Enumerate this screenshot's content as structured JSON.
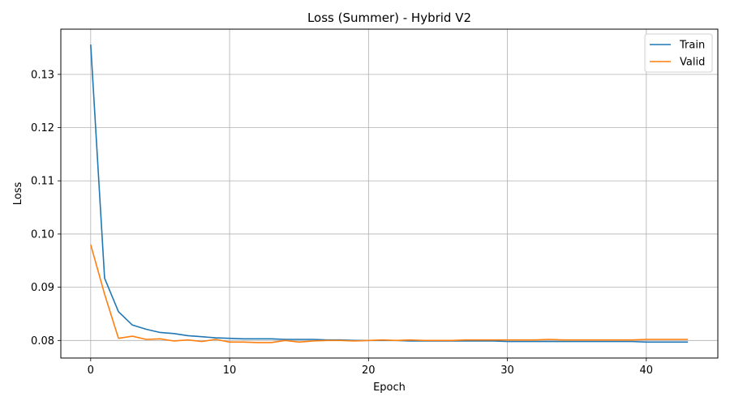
{
  "chart_data": {
    "type": "line",
    "title": "Loss (Summer) - Hybrid V2",
    "xlabel": "Epoch",
    "ylabel": "Loss",
    "xlim": [
      -2.15,
      45.15
    ],
    "ylim": [
      0.0767,
      0.1385
    ],
    "xticks": [
      0,
      10,
      20,
      30,
      40
    ],
    "yticks": [
      0.08,
      0.09,
      0.1,
      0.11,
      0.12,
      0.13
    ],
    "ytick_labels": [
      "0.08",
      "0.09",
      "0.10",
      "0.11",
      "0.12",
      "0.13"
    ],
    "grid": true,
    "legend_position": "top-right",
    "x": [
      0,
      1,
      2,
      3,
      4,
      5,
      6,
      7,
      8,
      9,
      10,
      11,
      12,
      13,
      14,
      15,
      16,
      17,
      18,
      19,
      20,
      21,
      22,
      23,
      24,
      25,
      26,
      27,
      28,
      29,
      30,
      31,
      32,
      33,
      34,
      35,
      36,
      37,
      38,
      39,
      40,
      41,
      42,
      43
    ],
    "series": [
      {
        "name": "Train",
        "color": "#1f77b4",
        "values": [
          0.1356,
          0.0917,
          0.0854,
          0.0829,
          0.0821,
          0.0815,
          0.0813,
          0.0809,
          0.0807,
          0.0805,
          0.0804,
          0.0803,
          0.0803,
          0.0803,
          0.0802,
          0.0802,
          0.0802,
          0.0801,
          0.0801,
          0.08,
          0.08,
          0.08,
          0.08,
          0.0799,
          0.0799,
          0.0799,
          0.0799,
          0.0799,
          0.0799,
          0.0799,
          0.0798,
          0.0798,
          0.0798,
          0.0798,
          0.0798,
          0.0798,
          0.0798,
          0.0798,
          0.0798,
          0.0798,
          0.0797,
          0.0797,
          0.0797,
          0.0797
        ]
      },
      {
        "name": "Valid",
        "color": "#ff7f0e",
        "values": [
          0.098,
          0.0887,
          0.0804,
          0.0808,
          0.0802,
          0.0803,
          0.0799,
          0.0801,
          0.0798,
          0.0802,
          0.0797,
          0.0797,
          0.0796,
          0.0796,
          0.08,
          0.0797,
          0.0799,
          0.08,
          0.08,
          0.0799,
          0.08,
          0.0801,
          0.08,
          0.0801,
          0.08,
          0.08,
          0.08,
          0.0801,
          0.0801,
          0.0801,
          0.0801,
          0.0801,
          0.0801,
          0.0802,
          0.0801,
          0.0801,
          0.0801,
          0.0801,
          0.0801,
          0.0801,
          0.0802,
          0.0802,
          0.0802,
          0.0802
        ]
      }
    ]
  }
}
